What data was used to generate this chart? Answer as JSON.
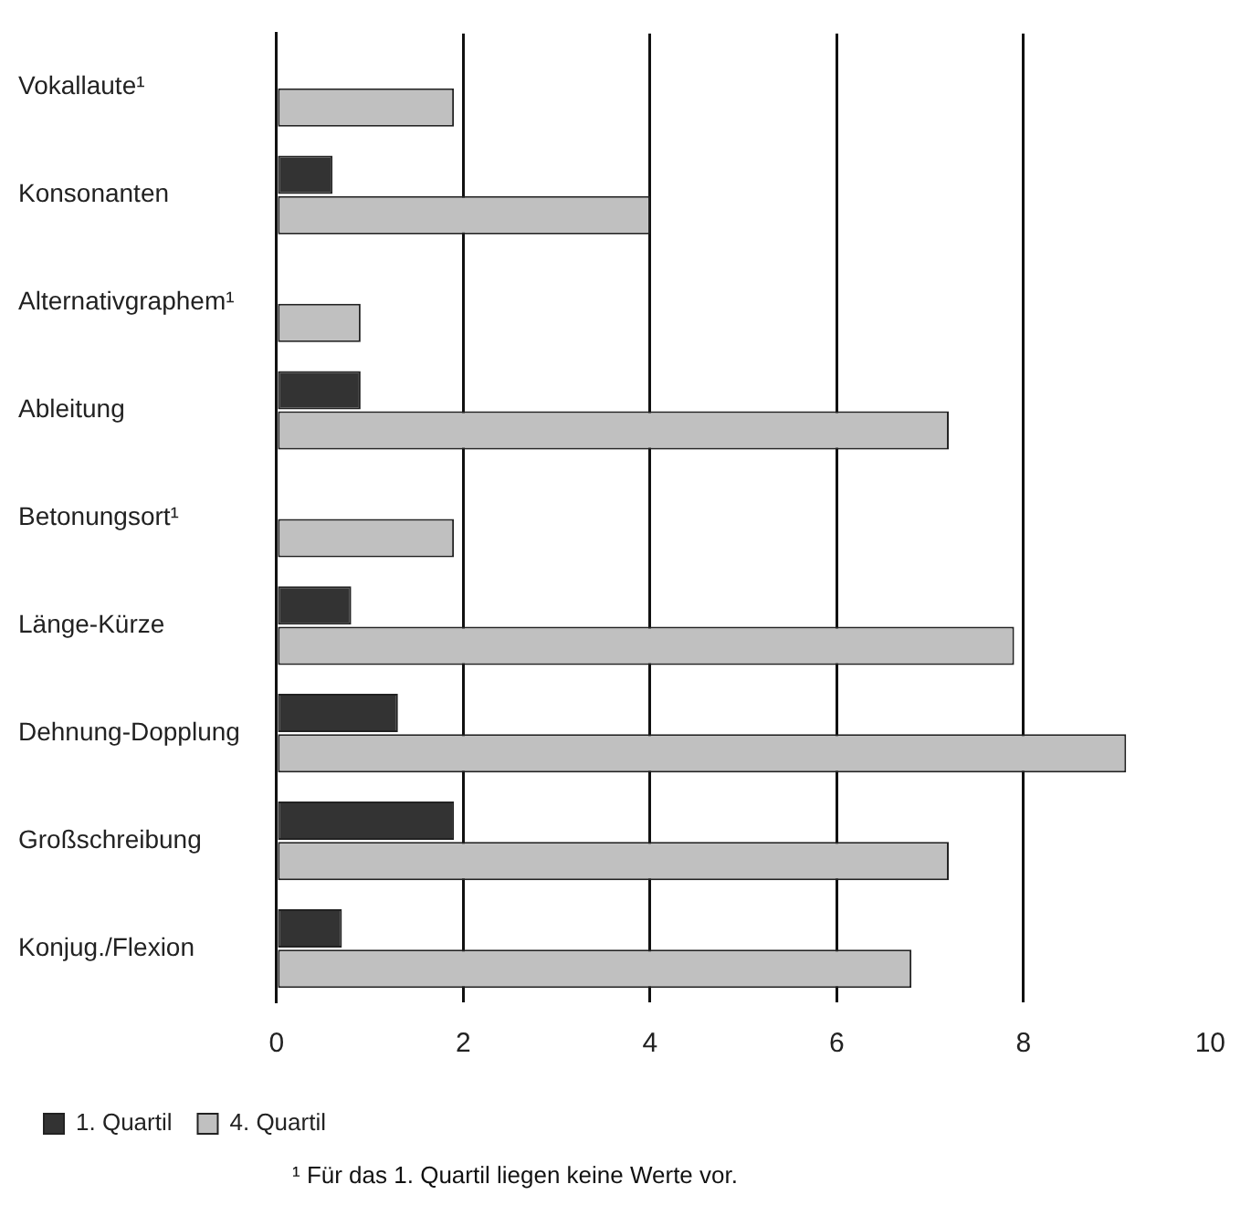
{
  "chart_data": {
    "type": "bar",
    "orientation": "horizontal",
    "categories": [
      "Vokallaute¹",
      "Konsonanten",
      "Alternativgraphem¹",
      "Ableitung",
      "Betonungsort¹",
      "Länge-Kürze",
      "Dehnung-Dopplung",
      "Großschreibung",
      "Konjug./Flexion"
    ],
    "series": [
      {
        "name": "1. Quartil",
        "color": "#333333",
        "values": [
          null,
          0.6,
          null,
          0.9,
          null,
          0.8,
          1.3,
          1.9,
          0.7
        ]
      },
      {
        "name": "4. Quartil",
        "color": "#c0c0c0",
        "values": [
          1.9,
          4.0,
          0.9,
          7.2,
          1.9,
          7.9,
          9.1,
          7.2,
          6.8
        ]
      }
    ],
    "xlim": [
      0,
      10
    ],
    "xticks": [
      0,
      2,
      4,
      6,
      8,
      10
    ],
    "grid": "x",
    "legend": "bottom left",
    "annotations": [
      "¹  Für das 1. Quartil liegen keine Werte vor."
    ]
  }
}
